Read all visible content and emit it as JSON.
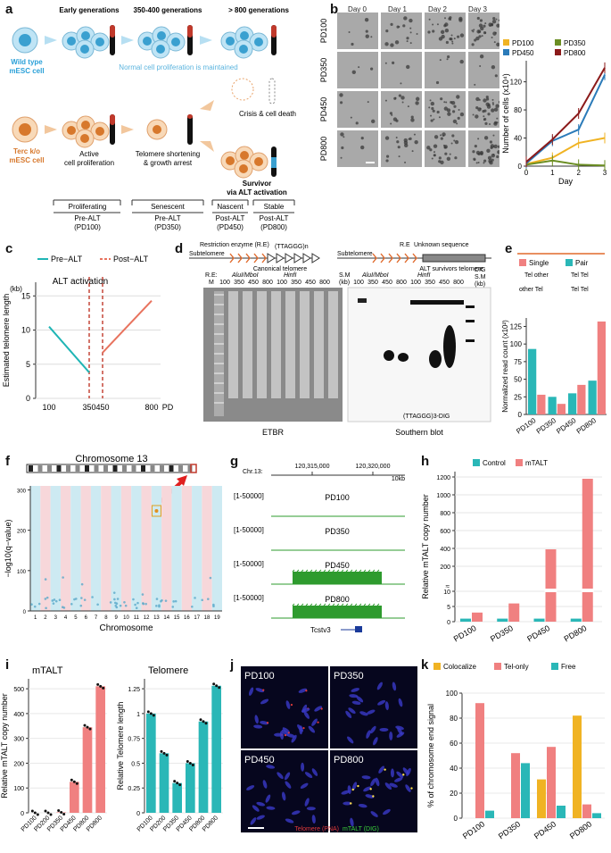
{
  "panel_labels": {
    "a": "a",
    "b": "b",
    "c": "c",
    "d": "d",
    "e": "e",
    "f": "f",
    "g": "g",
    "h": "h",
    "i": "i",
    "j": "j",
    "k": "k"
  },
  "a": {
    "headers": [
      "Early generations",
      "350-400 generations",
      "> 800 generations"
    ],
    "wt_label": "Wild type\nmESC cell",
    "terc_label": "Terc k/o\nmESC cell",
    "normal_text": "Normal cell proliferation is maintained",
    "active_text": "Active\ncell proliferation",
    "shortening_text": "Telomere shortening\n& growth arrest",
    "crisis_text": "Crisis & cell death",
    "survivor_text": "Survivor\nvia ALT activation",
    "stages": [
      {
        "name": "Proliferating",
        "sub": "Pre-ALT\n(PD100)"
      },
      {
        "name": "Senescent",
        "sub": "Pre-ALT\n(PD350)"
      },
      {
        "name": "Nascent",
        "sub": "Post-ALT\n(PD450)"
      },
      {
        "name": "Stable",
        "sub": "Post-ALT\n(PD800)"
      }
    ]
  },
  "b": {
    "days": [
      "Day 0",
      "Day 1",
      "Day 2",
      "Day 3"
    ],
    "rows": [
      "PD100",
      "PD350",
      "PD450",
      "PD800"
    ],
    "chart_data": {
      "type": "line",
      "x": [
        0,
        1,
        2,
        3
      ],
      "xlabel": "Day",
      "ylabel": "Number of cells (x10⁴)",
      "ylim": [
        0,
        150
      ],
      "yticks": [
        0,
        40,
        80,
        120
      ],
      "legend": [
        "PD100",
        "PD350",
        "PD450",
        "PD800"
      ],
      "series": [
        {
          "name": "PD100",
          "color": "#f0b323",
          "values": [
            3,
            12,
            33,
            40
          ]
        },
        {
          "name": "PD350",
          "color": "#6b8e23",
          "values": [
            2,
            8,
            2,
            1
          ]
        },
        {
          "name": "PD450",
          "color": "#2b7bb9",
          "values": [
            4,
            36,
            52,
            130
          ]
        },
        {
          "name": "PD800",
          "color": "#8b1a1a",
          "values": [
            6,
            38,
            75,
            140
          ]
        }
      ]
    }
  },
  "c": {
    "legend": [
      "Pre−ALT",
      "Post−ALT"
    ],
    "annotation": "ALT activation",
    "chart_data": {
      "type": "line",
      "ylabel": "Estimated telomere length",
      "yunit": "(kb)",
      "xlabel": "PD",
      "xticks": [
        "100",
        "350",
        "450",
        "800"
      ],
      "yticks": [
        0,
        5,
        10,
        15
      ],
      "series": [
        {
          "name": "Pre−ALT",
          "color": "#1fb5b5",
          "x": [
            100,
            350
          ],
          "values": [
            10.5,
            3.8
          ]
        },
        {
          "name": "Post−ALT",
          "color": "#e8735e",
          "x": [
            450,
            800
          ],
          "values": [
            6.7,
            14.3
          ]
        }
      ]
    }
  },
  "d": {
    "subtelomere1": "Subtelomere",
    "re_label": "Restriction enzyme (R.E)",
    "repeat_label": "(TTAGGG)n",
    "canonical": "Canonical telomere",
    "subtelomere2": "Subtelomere",
    "re2": "R.E",
    "unknown": "Unknown sequence",
    "alt_tel": "ALT survivors telomere",
    "re_m": "R.E:\nM",
    "alui": "AluI/MboI",
    "hinfi": "HinfI",
    "lanes": [
      "100",
      "350",
      "450",
      "800",
      "100",
      "350",
      "450",
      "800"
    ],
    "sm": "S.M\n(kb)",
    "dig_sm": "DIG\nS.M\n(kb)",
    "etbr": "ETBR",
    "southern": "Southern blot",
    "probe": "(TTAGGG)3-DIG"
  },
  "e": {
    "legend": [
      "Single",
      "Pair"
    ],
    "legend_sub": [
      "Tel  other",
      "Tel  Tel",
      "other  Tel",
      "Tel  Tel"
    ],
    "chart_data": {
      "type": "bar",
      "categories": [
        "PD100",
        "PD350",
        "PD450",
        "PD800"
      ],
      "ylabel": "Normalized read count (x10²)",
      "ylim": [
        0,
        137
      ],
      "yticks": [
        0,
        25,
        50,
        75,
        100,
        125
      ],
      "series": [
        {
          "name": "Pair",
          "color": "#2ab7b7",
          "values": [
            93,
            25,
            30,
            48
          ]
        },
        {
          "name": "Single",
          "color": "#f08080",
          "values": [
            28,
            15,
            42,
            132
          ]
        }
      ]
    }
  },
  "f": {
    "title": "Chromosome 13",
    "ylabel": "−log10(q−value)",
    "xlabel": "Chromosome",
    "yticks": [
      "0",
      "100",
      "200",
      "300"
    ],
    "chromosomes": [
      "1",
      "2",
      "3",
      "4",
      "5",
      "6",
      "7",
      "8",
      "9",
      "10",
      "11",
      "12",
      "13",
      "14",
      "15",
      "16",
      "17",
      "18",
      "19"
    ]
  },
  "g": {
    "chr": "Chr.13:",
    "pos1": "120,315,000",
    "pos2": "120,320,000",
    "scale": "10kb",
    "tracks": [
      {
        "range": "[1-50000]",
        "name": "PD100"
      },
      {
        "range": "[1-50000]",
        "name": "PD350"
      },
      {
        "range": "[1-50000]",
        "name": "PD450"
      },
      {
        "range": "[1-50000]",
        "name": "PD800"
      }
    ],
    "gene": "Tcstv3"
  },
  "h": {
    "legend": [
      "Control",
      "mTALT"
    ],
    "chart_data": {
      "type": "bar",
      "categories": [
        "PD100",
        "PD350",
        "PD450",
        "PD800"
      ],
      "ylabel": "Relative mTALT copy number",
      "yticks": [
        "0",
        "5",
        "10",
        "200",
        "400",
        "600",
        "800",
        "1000",
        "1200"
      ],
      "series": [
        {
          "name": "Control",
          "color": "#2ab7b7",
          "values": [
            1,
            1,
            1,
            1
          ]
        },
        {
          "name": "mTALT",
          "color": "#f08080",
          "values": [
            3,
            6,
            390,
            1180
          ]
        }
      ]
    }
  },
  "i": {
    "chart_data": [
      {
        "type": "bar",
        "title": "mTALT",
        "ylabel": "Relative mTALT copy number",
        "categories": [
          "PD100",
          "PD200",
          "PD350",
          "PD450",
          "PD800",
          "PD800"
        ],
        "yticks": [
          0,
          100,
          200,
          300,
          400,
          500
        ],
        "ylim": [
          0,
          540
        ],
        "color": "#f08080",
        "values": [
          0,
          0,
          2,
          125,
          345,
          510
        ]
      },
      {
        "type": "bar",
        "title": "Telomere",
        "ylabel": "Relative Telomere length",
        "categories": [
          "PD100",
          "PD200",
          "PD350",
          "PD450",
          "PD800",
          "PD800"
        ],
        "yticks": [
          0,
          0.25,
          0.5,
          0.75,
          1,
          1.25
        ],
        "ylim": [
          0,
          1.35
        ],
        "color": "#2ab7b7",
        "values": [
          1,
          0.6,
          0.3,
          0.5,
          0.92,
          1.28
        ]
      }
    ]
  },
  "j": {
    "labels": [
      "PD100",
      "PD350",
      "PD450",
      "PD800"
    ],
    "legend_red": "Telomere (PNA)",
    "legend_green": "mTALT (DIG)"
  },
  "k": {
    "legend": [
      "Colocalize",
      "Tel-only",
      "Free"
    ],
    "chart_data": {
      "type": "bar",
      "categories": [
        "PD100",
        "PD350",
        "PD450",
        "PD800"
      ],
      "ylabel": "% of chromosome end signal",
      "yticks": [
        0,
        20,
        40,
        60,
        80,
        100
      ],
      "ylim": [
        0,
        100
      ],
      "series": [
        {
          "name": "Colocalize",
          "color": "#f0b323",
          "values": [
            0,
            0,
            31,
            82
          ]
        },
        {
          "name": "Tel-only",
          "color": "#f08080",
          "values": [
            92,
            52,
            57,
            11
          ]
        },
        {
          "name": "Free",
          "color": "#2ab7b7",
          "values": [
            6,
            44,
            10,
            4
          ]
        }
      ]
    }
  }
}
